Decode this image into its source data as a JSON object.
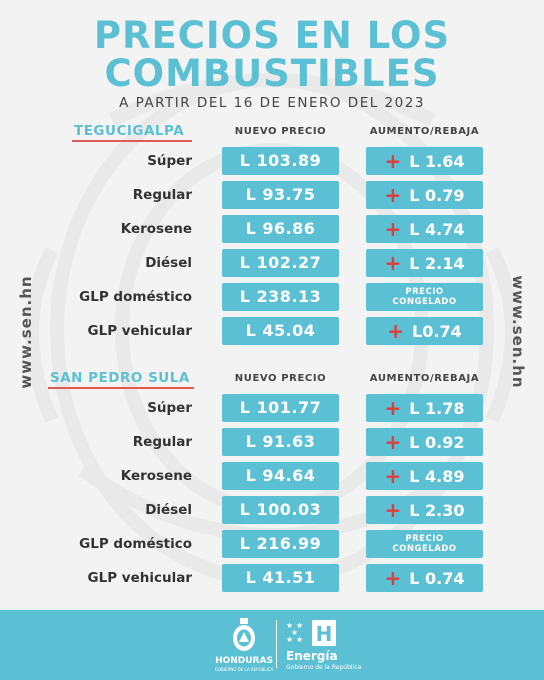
{
  "header": {
    "title_line1": "PRECIOS EN LOS",
    "title_line2": "COMBUSTIBLES",
    "subtitle": "A PARTIR DEL 16 DE ENERO DEL 2023"
  },
  "side_url": "www.sen.hn",
  "columns": {
    "price": "NUEVO PRECIO",
    "change": "AUMENTO/REBAJA"
  },
  "sections": [
    {
      "city": "TEGUCIGALPA",
      "rows": [
        {
          "fuel": "Súper",
          "price": "L 103.89",
          "change": "L 1.64"
        },
        {
          "fuel": "Regular",
          "price": "L 93.75",
          "change": "L 0.79"
        },
        {
          "fuel": "Kerosene",
          "price": "L 96.86",
          "change": "L 4.74"
        },
        {
          "fuel": "Diésel",
          "price": "L 102.27",
          "change": "L 2.14"
        },
        {
          "fuel": "GLP doméstico",
          "price": "L 238.13",
          "change_line1": "PRECIO",
          "change_line2": "CONGELADO"
        },
        {
          "fuel": "GLP vehicular",
          "price": "L 45.04",
          "change": "L0.74"
        }
      ]
    },
    {
      "city": "SAN PEDRO SULA",
      "rows": [
        {
          "fuel": "Súper",
          "price": "L 101.77",
          "change": "L 1.78"
        },
        {
          "fuel": "Regular",
          "price": "L 91.63",
          "change": "L 0.92"
        },
        {
          "fuel": "Kerosene",
          "price": "L 94.64",
          "change": "L 4.89"
        },
        {
          "fuel": "Diésel",
          "price": "L 100.03",
          "change": "L 2.30"
        },
        {
          "fuel": "GLP doméstico",
          "price": "L 216.99",
          "change_line1": "PRECIO",
          "change_line2": "CONGELADO"
        },
        {
          "fuel": "GLP vehicular",
          "price": "L 41.51",
          "change": "L 0.74"
        }
      ]
    }
  ],
  "change_sign": "+",
  "footer": {
    "left_label": "HONDURAS",
    "left_sub": "GOBIERNO DE LA REPÚBLICA",
    "right_letter": "H",
    "right_label": "Energía",
    "right_sub": "Gobierno de la República"
  },
  "colors": {
    "accent": "#5bc0d4",
    "increase": "#e23b3b",
    "underline": "#e05a5a"
  }
}
